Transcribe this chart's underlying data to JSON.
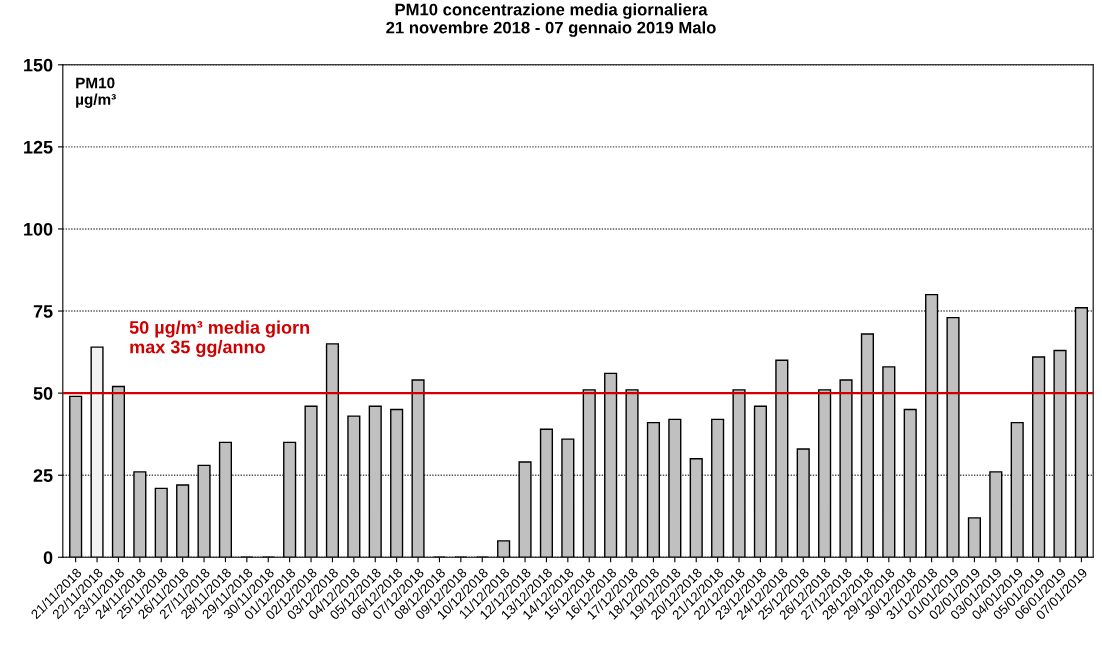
{
  "chart_data": {
    "type": "bar",
    "title": "PM10 concentrazione media giornaliera\n21 novembre 2018 - 07 gennaio 2019 Malo",
    "ylabel": "PM10\nµg/m³",
    "categories": [
      "21/11/2018",
      "22/11/2018",
      "23/11/2018",
      "24/11/2018",
      "25/11/2018",
      "26/11/2018",
      "27/11/2018",
      "28/11/2018",
      "29/11/2018",
      "30/11/2018",
      "01/12/2018",
      "02/12/2018",
      "03/12/2018",
      "04/12/2018",
      "05/12/2018",
      "06/12/2018",
      "07/12/2018",
      "08/12/2018",
      "09/12/2018",
      "10/12/2018",
      "11/12/2018",
      "12/12/2018",
      "13/12/2018",
      "14/12/2018",
      "15/12/2018",
      "16/12/2018",
      "17/12/2018",
      "18/12/2018",
      "19/12/2018",
      "20/12/2018",
      "21/12/2018",
      "22/12/2018",
      "23/12/2018",
      "24/12/2018",
      "25/12/2018",
      "26/12/2018",
      "27/12/2018",
      "28/12/2018",
      "29/12/2018",
      "30/12/2018",
      "31/12/2018",
      "01/01/2019",
      "02/01/2019",
      "03/01/2019",
      "04/01/2019",
      "05/01/2019",
      "06/01/2019",
      "07/01/2019"
    ],
    "values": [
      49,
      64,
      52,
      26,
      21,
      22,
      28,
      35,
      null,
      null,
      35,
      46,
      65,
      43,
      46,
      45,
      54,
      null,
      null,
      null,
      5,
      29,
      39,
      36,
      51,
      56,
      51,
      41,
      42,
      30,
      42,
      51,
      46,
      60,
      33,
      51,
      54,
      68,
      58,
      45,
      80,
      73,
      12,
      26,
      41,
      61,
      63,
      76
    ],
    "colors": [
      "#c0c0c0",
      "#f2f2f2",
      "#c0c0c0",
      "#c0c0c0",
      "#c0c0c0",
      "#c0c0c0",
      "#c0c0c0",
      "#c0c0c0",
      "#c0c0c0",
      "#c0c0c0",
      "#c0c0c0",
      "#c0c0c0",
      "#c0c0c0",
      "#c0c0c0",
      "#c0c0c0",
      "#c0c0c0",
      "#c0c0c0",
      "#c0c0c0",
      "#c0c0c0",
      "#c0c0c0",
      "#c0c0c0",
      "#c0c0c0",
      "#c0c0c0",
      "#c0c0c0",
      "#c0c0c0",
      "#c0c0c0",
      "#c0c0c0",
      "#c0c0c0",
      "#c0c0c0",
      "#c0c0c0",
      "#c0c0c0",
      "#c0c0c0",
      "#c0c0c0",
      "#c0c0c0",
      "#c0c0c0",
      "#c0c0c0",
      "#c0c0c0",
      "#c0c0c0",
      "#c0c0c0",
      "#c0c0c0",
      "#c0c0c0",
      "#c0c0c0",
      "#c0c0c0",
      "#c0c0c0",
      "#c0c0c0",
      "#c0c0c0",
      "#c0c0c0",
      "#c0c0c0"
    ],
    "ylim": [
      0,
      150
    ],
    "yticks": [
      0,
      25,
      50,
      75,
      100,
      125,
      150
    ],
    "grid": "y",
    "legend": false,
    "ref_lines": [
      {
        "axis": "y",
        "value": 50,
        "label": "50 µg/m³ media giorn\nmax 35 gg/anno",
        "color": "#d00000",
        "line_style": "solid"
      }
    ]
  }
}
